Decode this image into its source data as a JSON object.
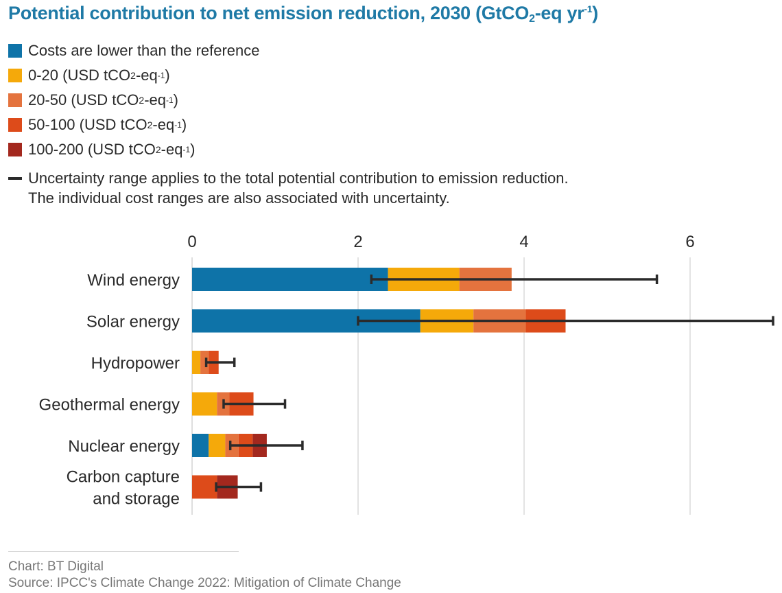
{
  "title": {
    "main": "Potential contribution to net emission reduction, 2030 (GtCO",
    "sub": "2",
    "mid": "-eq yr",
    "sup": "-1",
    "end": ")"
  },
  "legend": [
    {
      "label": "Costs are lower than the reference",
      "color": "#0e73a8",
      "unit": false
    },
    {
      "label": "0-20 (USD tCO",
      "color": "#f5a90a",
      "unit": true
    },
    {
      "label": "20-50 (USD tCO",
      "color": "#e4733e",
      "unit": true
    },
    {
      "label": "50-100 (USD tCO",
      "color": "#dd4b1a",
      "unit": true
    },
    {
      "label": "100-200 (USD tCO",
      "color": "#a3281e",
      "unit": true
    }
  ],
  "legend_unit": {
    "sub": "2",
    "mid": "-eq",
    "sup": "-1",
    "end": ")"
  },
  "note": {
    "line1": "Uncertainty range applies to the total potential contribution to emission reduction.",
    "line2": "The individual cost ranges are also associated with uncertainty."
  },
  "footer": {
    "credit": "Chart: BT Digital",
    "source": "Source: IPCC's Climate Change 2022: Mitigation of Climate Change"
  },
  "chart_data": {
    "type": "bar",
    "orientation": "horizontal",
    "stacked": true,
    "title": "Potential contribution to net emission reduction, 2030 (GtCO2-eq yr-1)",
    "xlabel": "",
    "ylabel": "",
    "xlim": [
      0,
      7
    ],
    "xticks": [
      0,
      2,
      4,
      6
    ],
    "grid": true,
    "legend_position": "top-left",
    "categories": [
      "Wind energy",
      "Solar energy",
      "Hydropower",
      "Geothermal energy",
      "Nuclear energy",
      "Carbon capture and storage"
    ],
    "category_lines": [
      [
        "Wind energy"
      ],
      [
        "Solar energy"
      ],
      [
        "Hydropower"
      ],
      [
        "Geothermal energy"
      ],
      [
        "Nuclear energy"
      ],
      [
        "Carbon capture",
        "and storage"
      ]
    ],
    "series": [
      {
        "name": "Costs are lower than the reference",
        "color": "#0e73a8",
        "values": [
          2.36,
          2.75,
          0,
          0,
          0.2,
          0
        ]
      },
      {
        "name": "0-20 (USD tCO2-eq-1)",
        "color": "#f5a90a",
        "values": [
          0.86,
          0.64,
          0.1,
          0.3,
          0.2,
          0
        ]
      },
      {
        "name": "20-50 (USD tCO2-eq-1)",
        "color": "#e4733e",
        "values": [
          0.63,
          0.63,
          0.1,
          0.15,
          0.16,
          0
        ]
      },
      {
        "name": "50-100 (USD tCO2-eq-1)",
        "color": "#dd4b1a",
        "values": [
          0,
          0.48,
          0.12,
          0.29,
          0.17,
          0.3
        ]
      },
      {
        "name": "100-200 (USD tCO2-eq-1)",
        "color": "#a3281e",
        "values": [
          0,
          0,
          0,
          0,
          0.17,
          0.25
        ]
      }
    ],
    "totals": [
      3.85,
      4.5,
      0.32,
      0.74,
      0.9,
      0.55
    ],
    "uncertainty": [
      {
        "low": 2.16,
        "high": 5.6
      },
      {
        "low": 2.0,
        "high": 7.0
      },
      {
        "low": 0.17,
        "high": 0.51
      },
      {
        "low": 0.38,
        "high": 1.12
      },
      {
        "low": 0.46,
        "high": 1.33
      },
      {
        "low": 0.29,
        "high": 0.83
      }
    ]
  }
}
